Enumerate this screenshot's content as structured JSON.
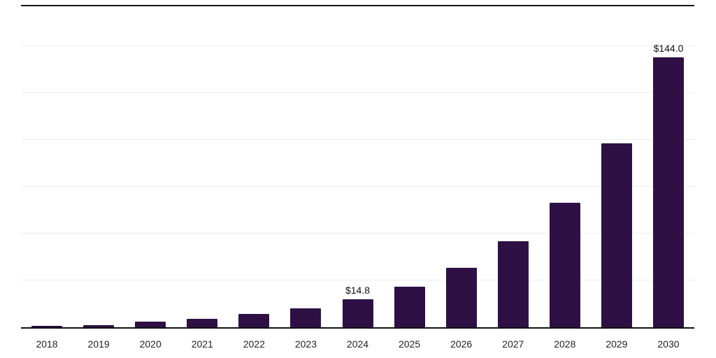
{
  "page": {
    "background": "#ffffff",
    "top_divider_color": "#161616"
  },
  "chart_data": {
    "type": "bar",
    "title": "",
    "xlabel": "",
    "ylabel": "",
    "categories": [
      "2018",
      "2019",
      "2020",
      "2021",
      "2022",
      "2023",
      "2024",
      "2025",
      "2026",
      "2027",
      "2028",
      "2029",
      "2030"
    ],
    "values": [
      0.8,
      1.3,
      2.8,
      4.6,
      7.0,
      10.2,
      14.8,
      21.6,
      31.6,
      46.0,
      66.5,
      98.0,
      144.0
    ],
    "value_labels": [
      {
        "category": "2024",
        "text": "$14.8"
      },
      {
        "category": "2030",
        "text": "$144.0"
      }
    ],
    "ylim": [
      0,
      150
    ],
    "gridline_interval": 25,
    "grid": true,
    "legend": "none",
    "bar_color": "#2e1045",
    "axis_color": "#111111",
    "gridline_color": "#ededed"
  }
}
